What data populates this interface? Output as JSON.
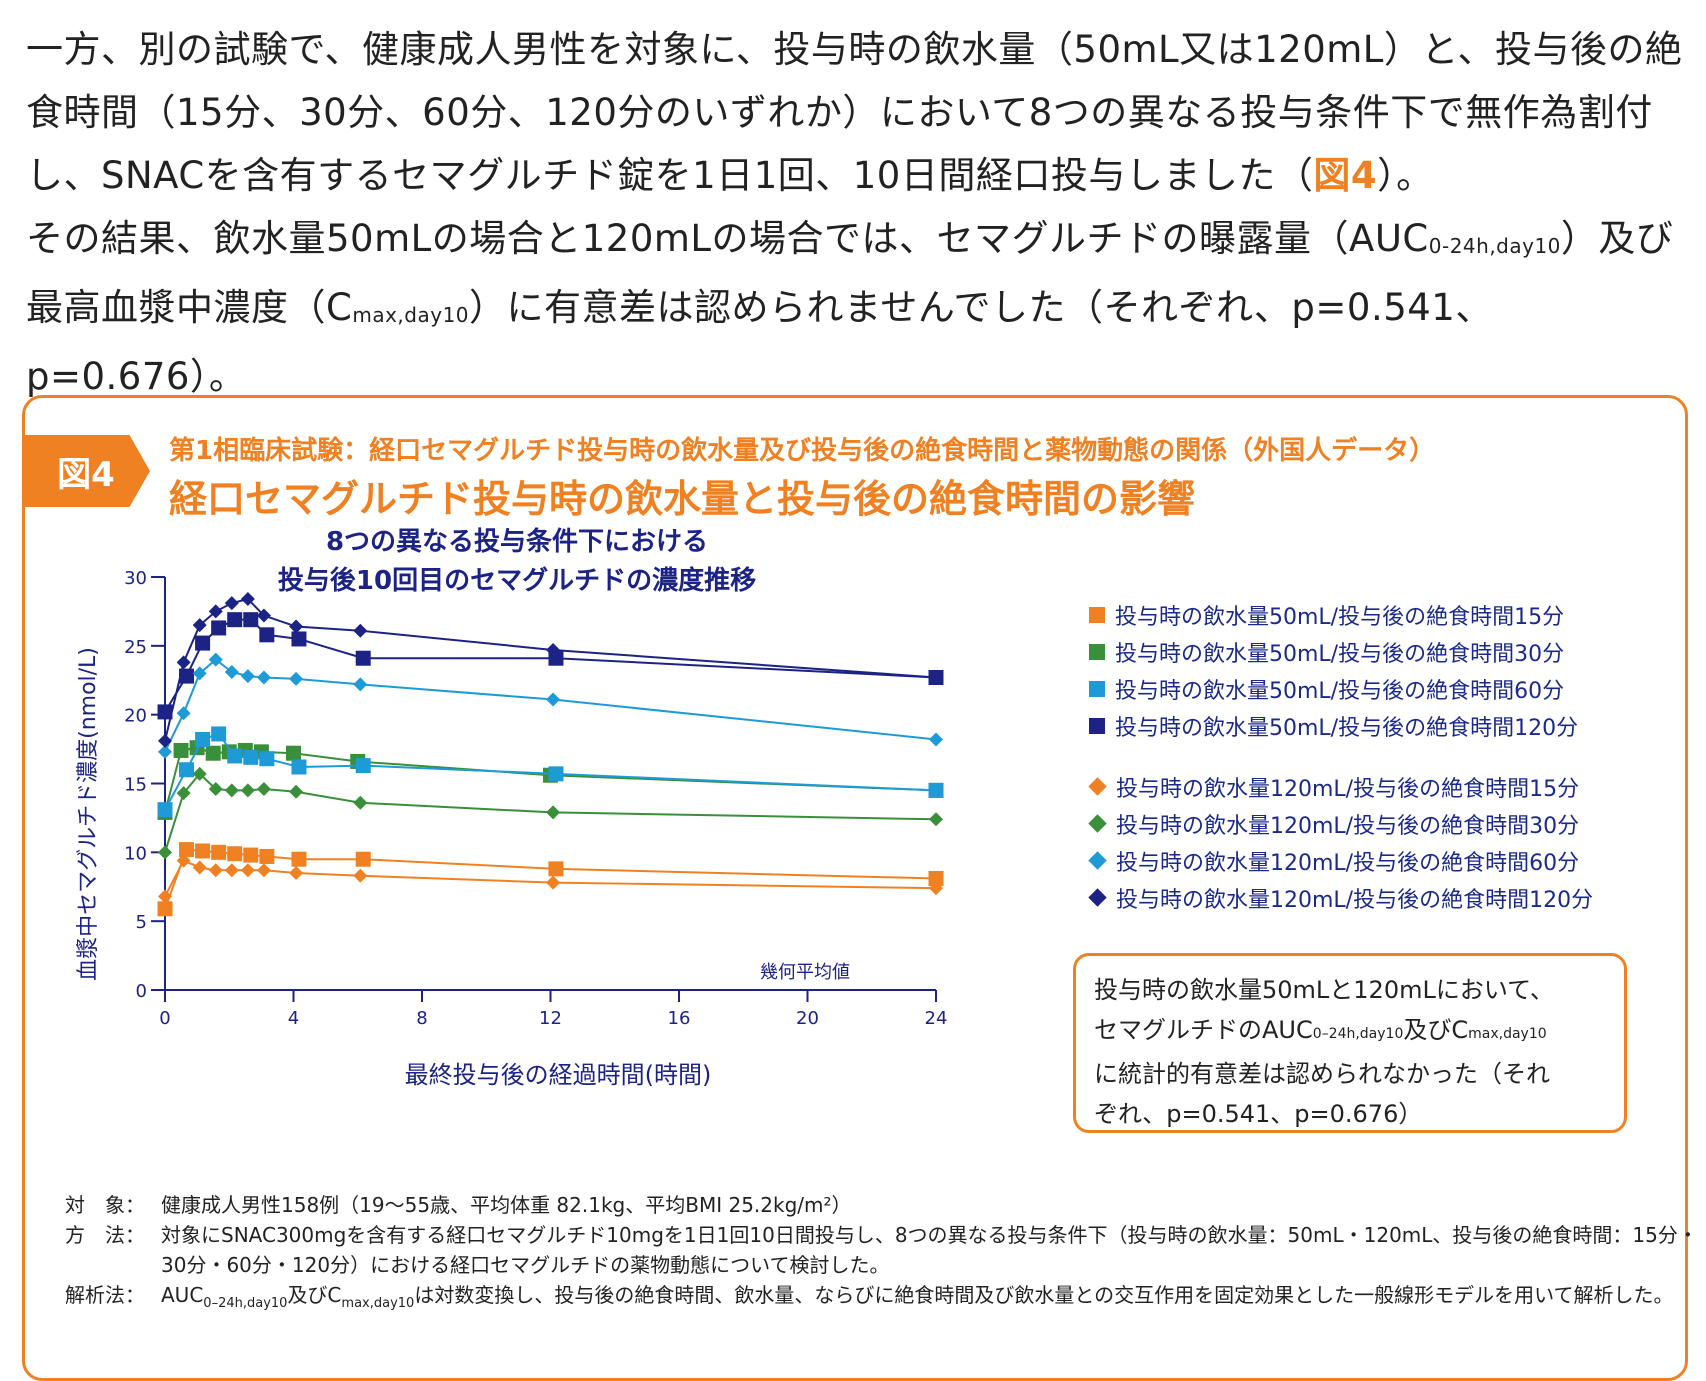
{
  "intro": {
    "p1_a": "一方、別の試験で、健康成人男性を対象に、投与時の飲水量（50mL又は120mL）と、投与後の絶食時間（15分、30分、60分、120分のいずれか）において8つの異なる投与条件下で無作為割付し、SNACを含有するセマグルチド錠を1日1回、10日間経口投与しました（",
    "p1_ref": "図4",
    "p1_b": "）。",
    "p2_a": "その結果、飲水量50mLの場合と120mLの場合では、セマグルチドの曝露量（AUC",
    "p2_sub1": "0-24h,day10",
    "p2_b": "）及び最高血漿中濃度（C",
    "p2_sub2": "max,day10",
    "p2_c": "）に有意差は認められませんでした（それぞれ、p=0.541、p=0.676）。"
  },
  "figure": {
    "tag": "図4",
    "subtitle": "第1相臨床試験：経口セマグルチド投与時の飲水量及び投与後の絶食時間と薬物動態の関係（外国人データ）",
    "title": "経口セマグルチド投与時の飲水量と投与後の絶食時間の影響"
  },
  "note": {
    "line1": "投与時の飲水量50mLと120mLにおいて、",
    "line2a": "セマグルチドのAUC",
    "sub1": "0–24h,day10",
    "line2b": "及びC",
    "sub2": "max,day10",
    "line3": "に統計的有意差は認められなかった（それ",
    "line4": "ぞれ、p=0.541、p=0.676）"
  },
  "footer": {
    "l1_label": "対　象：",
    "l1_text": "健康成人男性158例（19～55歳、平均体重 82.1kg、平均BMI 25.2kg/m²）",
    "l2_label": "方　法：",
    "l2_text": "対象にSNAC300mgを含有する経口セマグルチド10mgを1日1回10日間投与し、8つの異なる投与条件下（投与時の飲水量：50mL・120mL、投与後の絶食時間：15分・30分・60分・120分）における経口セマグルチドの薬物動態について検討した。",
    "l3_label": "解析法：",
    "l3_a": "AUC",
    "l3_sub1": "0–24h,day10",
    "l3_b": "及びC",
    "l3_sub2": "max,day10",
    "l3_c": "は対数変換し、投与後の絶食時間、飲水量、ならびに絶食時間及び飲水量との交互作用を固定効果とした一般線形モデルを用いて解析した。"
  },
  "chart_data": {
    "type": "line",
    "title_line1": "8つの異なる投与条件下における",
    "title_line2": "投与後10回目のセマグルチドの濃度推移",
    "xlabel": "最終投与後の経過時間(時間)",
    "ylabel": "血漿中セマグルチド濃度(nmol/L)",
    "annotation": "幾何平均値",
    "xlim": [
      0,
      24
    ],
    "ylim": [
      0,
      30
    ],
    "xticks": [
      0,
      4,
      8,
      12,
      16,
      20,
      24
    ],
    "yticks": [
      0,
      5,
      10,
      15,
      20,
      25,
      30
    ],
    "colors": {
      "c15": "#f08123",
      "c30": "#3a8f3a",
      "c60": "#1e9bd7",
      "c120": "#1c2385"
    },
    "series": [
      {
        "name": "投与時の飲水量50mL/投与後の絶食時間15分",
        "marker": "square",
        "color": "#f08123",
        "x": [
          0,
          0.67,
          1.17,
          1.67,
          2.17,
          2.67,
          3.17,
          4.17,
          6.17,
          12.17,
          24
        ],
        "y": [
          5.9,
          10.2,
          10.1,
          10.0,
          9.9,
          9.8,
          9.7,
          9.5,
          9.5,
          8.8,
          8.1
        ]
      },
      {
        "name": "投与時の飲水量50mL/投与後の絶食時間30分",
        "marker": "square",
        "color": "#3a8f3a",
        "x": [
          0,
          0.5,
          1.0,
          1.5,
          2.0,
          2.5,
          3.0,
          4.0,
          6.0,
          12.0,
          24
        ],
        "y": [
          12.9,
          17.4,
          17.6,
          17.2,
          17.3,
          17.4,
          17.3,
          17.2,
          16.6,
          15.6,
          14.5
        ]
      },
      {
        "name": "投与時の飲水量50mL/投与後の絶食時間60分",
        "marker": "square",
        "color": "#1e9bd7",
        "x": [
          0,
          0.67,
          1.17,
          1.67,
          2.17,
          2.67,
          3.17,
          4.17,
          6.17,
          12.17,
          24
        ],
        "y": [
          13.1,
          16.0,
          18.2,
          18.6,
          17.0,
          16.9,
          16.8,
          16.2,
          16.3,
          15.7,
          14.5
        ]
      },
      {
        "name": "投与時の飲水量50mL/投与後の絶食時間120分",
        "marker": "square",
        "color": "#1c2385",
        "x": [
          0,
          0.67,
          1.17,
          1.67,
          2.17,
          2.67,
          3.17,
          4.17,
          6.17,
          12.17,
          24
        ],
        "y": [
          20.2,
          22.8,
          25.2,
          26.3,
          26.9,
          26.9,
          25.8,
          25.5,
          24.1,
          24.1,
          22.7
        ]
      },
      {
        "name": "投与時の飲水量120mL/投与後の絶食時間15分",
        "marker": "diamond",
        "color": "#f08123",
        "x": [
          0,
          0.58,
          1.08,
          1.58,
          2.08,
          2.58,
          3.08,
          4.08,
          6.08,
          12.08,
          24
        ],
        "y": [
          6.8,
          9.4,
          8.9,
          8.7,
          8.7,
          8.7,
          8.7,
          8.5,
          8.3,
          7.8,
          7.4
        ]
      },
      {
        "name": "投与時の飲水量120mL/投与後の絶食時間30分",
        "marker": "diamond",
        "color": "#3a8f3a",
        "x": [
          0,
          0.58,
          1.08,
          1.58,
          2.08,
          2.58,
          3.08,
          4.08,
          6.08,
          12.08,
          24
        ],
        "y": [
          10.0,
          14.3,
          15.7,
          14.6,
          14.5,
          14.5,
          14.6,
          14.4,
          13.6,
          12.9,
          12.4
        ]
      },
      {
        "name": "投与時の飲水量120mL/投与後の絶食時間60分",
        "marker": "diamond",
        "color": "#1e9bd7",
        "x": [
          0,
          0.58,
          1.08,
          1.58,
          2.08,
          2.58,
          3.08,
          4.08,
          6.08,
          12.08,
          24
        ],
        "y": [
          17.3,
          20.1,
          23.0,
          24.0,
          23.1,
          22.8,
          22.7,
          22.6,
          22.2,
          21.1,
          18.2
        ]
      },
      {
        "name": "投与時の飲水量120mL/投与後の絶食時間120分",
        "marker": "diamond",
        "color": "#1c2385",
        "x": [
          0,
          0.58,
          1.08,
          1.58,
          2.08,
          2.58,
          3.08,
          4.08,
          6.08,
          12.08,
          24
        ],
        "y": [
          18.1,
          23.8,
          26.5,
          27.5,
          28.1,
          28.4,
          27.2,
          26.4,
          26.1,
          24.7,
          22.7
        ]
      }
    ]
  }
}
